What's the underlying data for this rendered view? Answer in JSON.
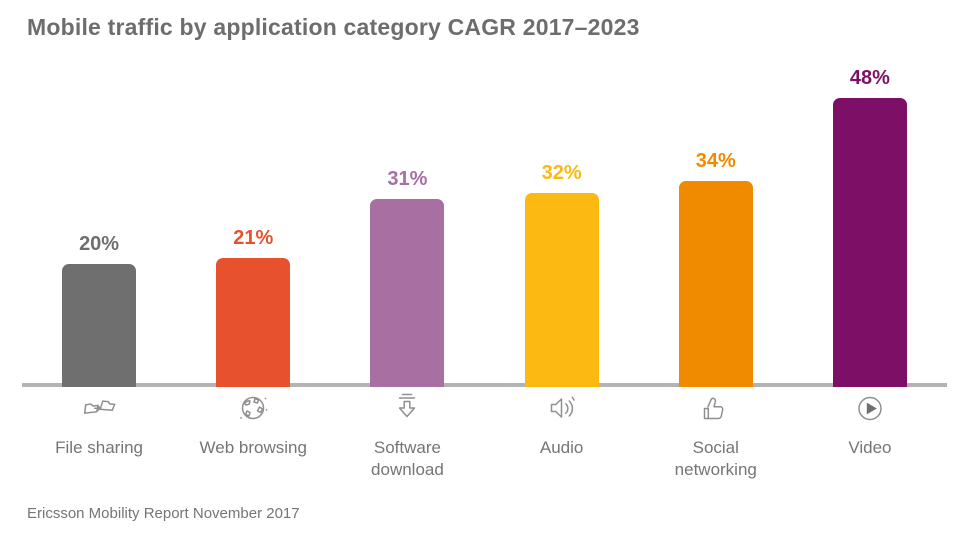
{
  "title": "Mobile traffic by application category CAGR 2017–2023",
  "footer": "Ericsson Mobility Report November 2017",
  "colors": {
    "background": "#ffffff",
    "title_text": "#6d6d6d",
    "category_text": "#757575",
    "footer_text": "#757575",
    "icon_stroke": "#8f8f8f",
    "baseline": "#b3b3b3"
  },
  "chart_data": {
    "type": "bar",
    "title": "Mobile traffic by application category CAGR 2017–2023",
    "categories": [
      "File sharing",
      "Web browsing",
      "Software download",
      "Audio",
      "Social networking",
      "Video"
    ],
    "values": [
      20,
      21,
      31,
      32,
      34,
      48
    ],
    "value_labels": [
      "20%",
      "21%",
      "31%",
      "32%",
      "34%",
      "48%"
    ],
    "unit": "%",
    "bar_colors": [
      "#6f6f6f",
      "#e8512e",
      "#a76fa2",
      "#fbb912",
      "#f08b00",
      "#7d1066"
    ],
    "icons": [
      "file-sharing",
      "web-browsing",
      "software-download",
      "audio",
      "social-networking",
      "video"
    ],
    "ylim": [
      0,
      50
    ],
    "grid": false,
    "legend": "none",
    "xlabel": "",
    "ylabel": "",
    "source": "Ericsson Mobility Report November 2017"
  }
}
